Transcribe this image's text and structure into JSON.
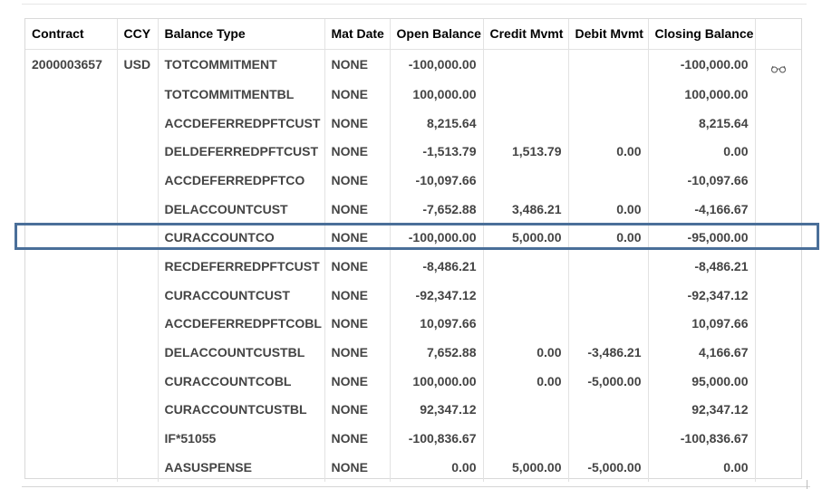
{
  "table": {
    "headers": {
      "contract": "Contract",
      "ccy": "CCY",
      "balance_type": "Balance Type",
      "mat_date": "Mat Date",
      "open_balance": "Open Balance",
      "credit_mvmt": "Credit Mvmt",
      "debit_mvmt": "Debit Mvmt",
      "closing_balance": "Closing Balance",
      "action": ""
    },
    "rows": [
      {
        "contract": "2000003657",
        "ccy": "USD",
        "balance_type": "TOTCOMMITMENT",
        "mat_date": "NONE",
        "open_balance": "-100,000.00",
        "credit_mvmt": "",
        "debit_mvmt": "",
        "closing_balance": "-100,000.00"
      },
      {
        "contract": "",
        "ccy": "",
        "balance_type": "TOTCOMMITMENTBL",
        "mat_date": "NONE",
        "open_balance": "100,000.00",
        "credit_mvmt": "",
        "debit_mvmt": "",
        "closing_balance": "100,000.00"
      },
      {
        "contract": "",
        "ccy": "",
        "balance_type": "ACCDEFERREDPFTCUST",
        "mat_date": "NONE",
        "open_balance": "8,215.64",
        "credit_mvmt": "",
        "debit_mvmt": "",
        "closing_balance": "8,215.64"
      },
      {
        "contract": "",
        "ccy": "",
        "balance_type": "DELDEFERREDPFTCUST",
        "mat_date": "NONE",
        "open_balance": "-1,513.79",
        "credit_mvmt": "1,513.79",
        "debit_mvmt": "0.00",
        "closing_balance": "0.00"
      },
      {
        "contract": "",
        "ccy": "",
        "balance_type": "ACCDEFERREDPFTCO",
        "mat_date": "NONE",
        "open_balance": "-10,097.66",
        "credit_mvmt": "",
        "debit_mvmt": "",
        "closing_balance": "-10,097.66"
      },
      {
        "contract": "",
        "ccy": "",
        "balance_type": "DELACCOUNTCUST",
        "mat_date": "NONE",
        "open_balance": "-7,652.88",
        "credit_mvmt": "3,486.21",
        "debit_mvmt": "0.00",
        "closing_balance": "-4,166.67"
      },
      {
        "contract": "",
        "ccy": "",
        "balance_type": "CURACCOUNTCO",
        "mat_date": "NONE",
        "open_balance": "-100,000.00",
        "credit_mvmt": "5,000.00",
        "debit_mvmt": "0.00",
        "closing_balance": "-95,000.00"
      },
      {
        "contract": "",
        "ccy": "",
        "balance_type": "RECDEFERREDPFTCUST",
        "mat_date": "NONE",
        "open_balance": "-8,486.21",
        "credit_mvmt": "",
        "debit_mvmt": "",
        "closing_balance": "-8,486.21"
      },
      {
        "contract": "",
        "ccy": "",
        "balance_type": "CURACCOUNTCUST",
        "mat_date": "NONE",
        "open_balance": "-92,347.12",
        "credit_mvmt": "",
        "debit_mvmt": "",
        "closing_balance": "-92,347.12"
      },
      {
        "contract": "",
        "ccy": "",
        "balance_type": "ACCDEFERREDPFTCOBL",
        "mat_date": "NONE",
        "open_balance": "10,097.66",
        "credit_mvmt": "",
        "debit_mvmt": "",
        "closing_balance": "10,097.66"
      },
      {
        "contract": "",
        "ccy": "",
        "balance_type": "DELACCOUNTCUSTBL",
        "mat_date": "NONE",
        "open_balance": "7,652.88",
        "credit_mvmt": "0.00",
        "debit_mvmt": "-3,486.21",
        "closing_balance": "4,166.67"
      },
      {
        "contract": "",
        "ccy": "",
        "balance_type": "CURACCOUNTCOBL",
        "mat_date": "NONE",
        "open_balance": "100,000.00",
        "credit_mvmt": "0.00",
        "debit_mvmt": "-5,000.00",
        "closing_balance": "95,000.00"
      },
      {
        "contract": "",
        "ccy": "",
        "balance_type": "CURACCOUNTCUSTBL",
        "mat_date": "NONE",
        "open_balance": "92,347.12",
        "credit_mvmt": "",
        "debit_mvmt": "",
        "closing_balance": "92,347.12"
      },
      {
        "contract": "",
        "ccy": "",
        "balance_type": "IF*51055",
        "mat_date": "NONE",
        "open_balance": "-100,836.67",
        "credit_mvmt": "",
        "debit_mvmt": "",
        "closing_balance": "-100,836.67"
      },
      {
        "contract": "",
        "ccy": "",
        "balance_type": "AASUSPENSE",
        "mat_date": "NONE",
        "open_balance": "0.00",
        "credit_mvmt": "5,000.00",
        "debit_mvmt": "-5,000.00",
        "closing_balance": "0.00"
      }
    ],
    "row_icon": "glasses-icon",
    "highlighted_row_index": 6,
    "highlight_color": "#4a6f99"
  }
}
